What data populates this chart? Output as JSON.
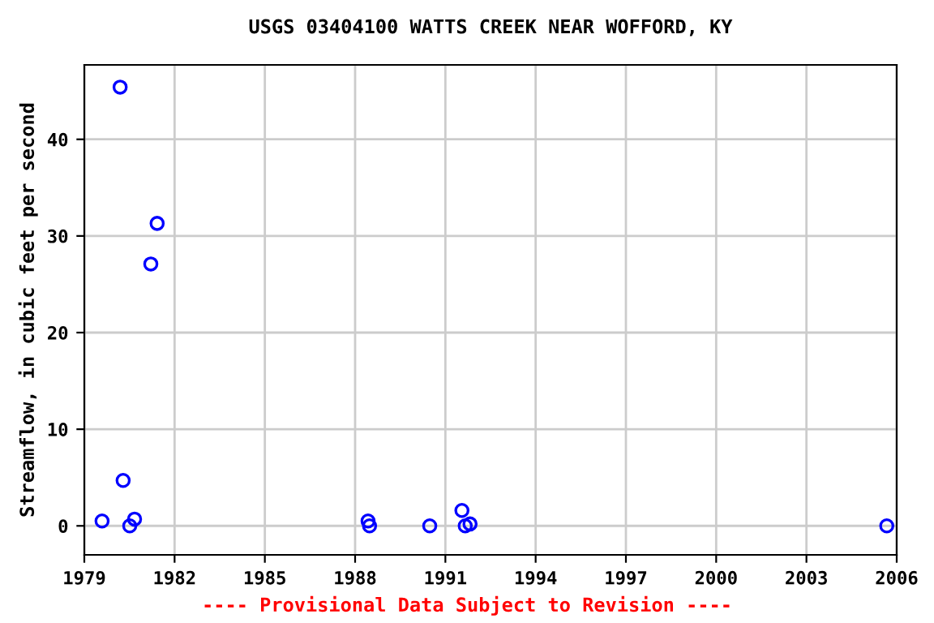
{
  "chart_data": {
    "type": "scatter",
    "title": "USGS 03404100 WATTS CREEK NEAR WOFFORD, KY",
    "ylabel": "Streamflow, in cubic feet per second",
    "annotations": [
      "---- Provisional Data Subject to Revision ----"
    ],
    "x": [
      1979.59,
      1980.19,
      1980.29,
      1980.51,
      1980.67,
      1981.21,
      1981.42,
      1988.43,
      1988.48,
      1990.48,
      1991.55,
      1991.66,
      1991.82,
      2005.67
    ],
    "series": [
      {
        "color": "#0000ff",
        "values": [
          0.5,
          45.4,
          4.7,
          0,
          0.7,
          27.1,
          31.3,
          0.5,
          0,
          0,
          1.6,
          0,
          0.2,
          0
        ]
      }
    ],
    "xlim": [
      1979,
      2006
    ],
    "xticks": [
      1979,
      1982,
      1985,
      1988,
      1991,
      1994,
      1997,
      2000,
      2003,
      2006
    ],
    "ylim": [
      -3,
      47.7
    ],
    "yticks": [
      0,
      10,
      20,
      30,
      40
    ],
    "grid": true,
    "marker": "circle",
    "legend": false
  }
}
